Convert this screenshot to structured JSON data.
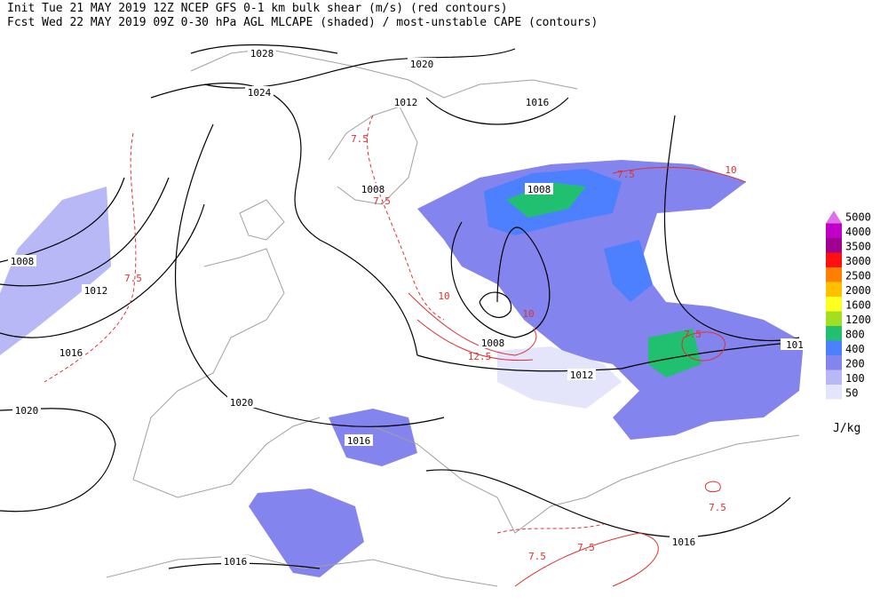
{
  "header": {
    "line1": "Init  Tue 21 MAY 2019 12Z  NCEP GFS 0-1 km bulk shear (m/s) (red contours)",
    "line2": "Fcst Wed 22 MAY 2019 09Z  0-30 hPa AGL MLCAPE (shaded) / most-unstable CAPE (contours)"
  },
  "legend": {
    "levels": [
      {
        "label": "5000",
        "color": "#e070e8"
      },
      {
        "label": "4000",
        "color": "#c000c8"
      },
      {
        "label": "3500",
        "color": "#a00090"
      },
      {
        "label": "3000",
        "color": "#ff1010"
      },
      {
        "label": "2500",
        "color": "#ff8000"
      },
      {
        "label": "2000",
        "color": "#ffc000"
      },
      {
        "label": "1600",
        "color": "#ffff20"
      },
      {
        "label": "1200",
        "color": "#a0e020"
      },
      {
        "label": "800",
        "color": "#20c070"
      },
      {
        "label": "400",
        "color": "#4c80ff"
      },
      {
        "label": "200",
        "color": "#8484ee"
      },
      {
        "label": "100",
        "color": "#b8b8f6"
      },
      {
        "label": "50",
        "color": "#e4e4fa"
      }
    ],
    "unit": "J/kg"
  },
  "pressure_labels": [
    "1028",
    "1024",
    "1020",
    "1016",
    "1012",
    "1008",
    "1008",
    "1008",
    "1012",
    "1016",
    "1020",
    "1020",
    "1016",
    "1008",
    "1012",
    "1016",
    "1016",
    "101"
  ],
  "shear_labels": [
    "7.5",
    "7.5",
    "10",
    "7.5",
    "10",
    "10",
    "12.5",
    "7.5",
    "7.5",
    "7.5",
    "7.5",
    "7.5"
  ]
}
